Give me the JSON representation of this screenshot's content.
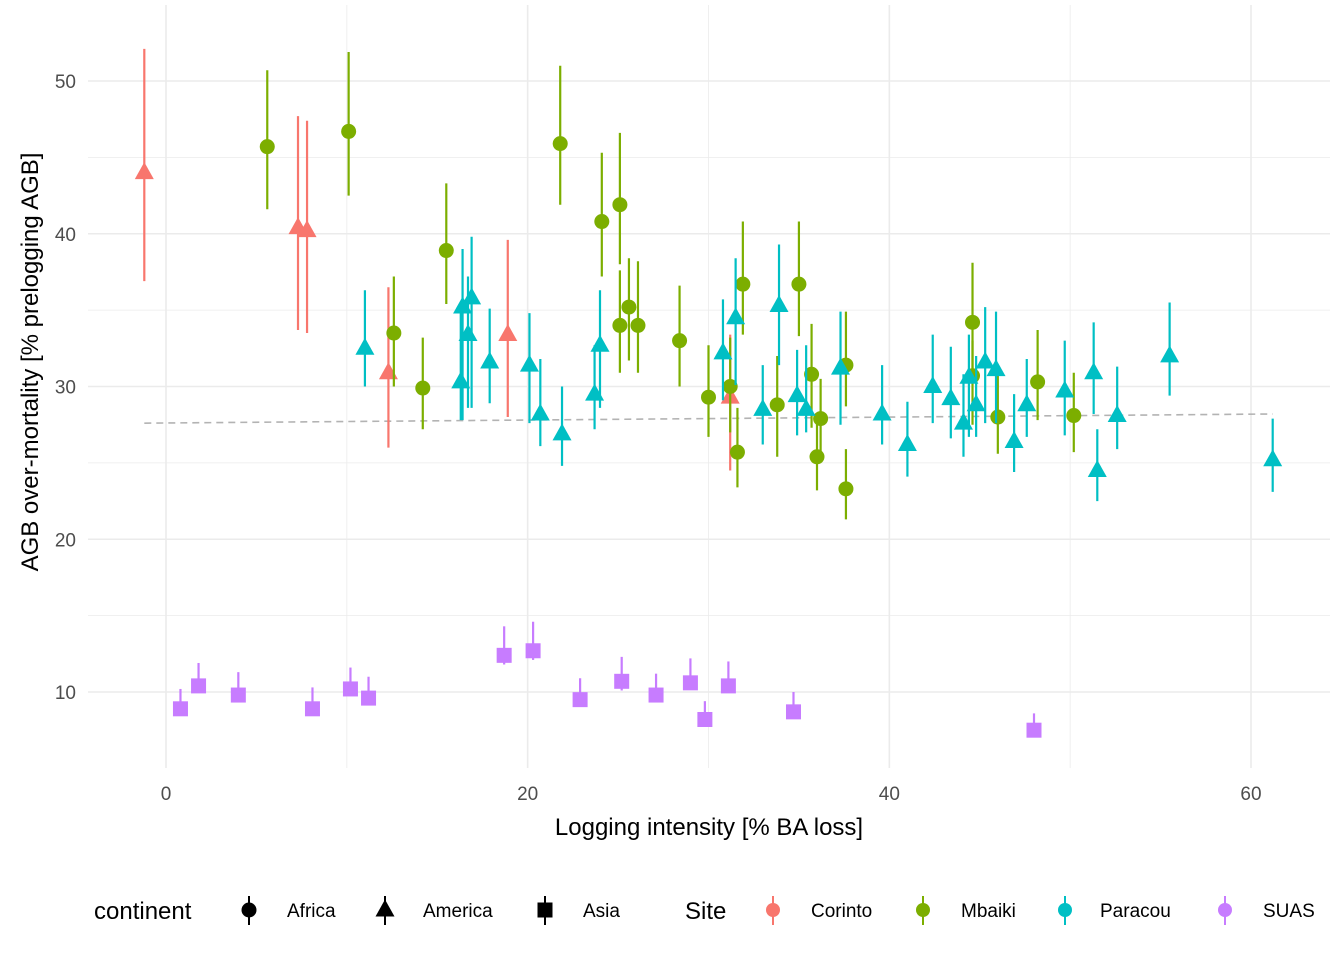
{
  "chart_data": {
    "type": "scatter",
    "title": "",
    "xlabel": "Logging intensity [% BA loss]",
    "ylabel": "AGB over-mortality [% prelogging AGB]",
    "xlim": [
      -4.3,
      64.2
    ],
    "ylim": [
      5,
      54.5
    ],
    "x_ticks": [
      0,
      20,
      40,
      60
    ],
    "y_ticks": [
      10,
      20,
      30,
      40,
      50
    ],
    "grid": true,
    "legend_position": "bottom",
    "legends": [
      {
        "title": "continent",
        "aesthetic": "shape",
        "entries": [
          {
            "label": "Africa",
            "shape": "circle"
          },
          {
            "label": "America",
            "shape": "triangle"
          },
          {
            "label": "Asia",
            "shape": "square"
          }
        ]
      },
      {
        "title": "Site",
        "aesthetic": "color",
        "entries": [
          {
            "label": "Corinto",
            "color": "#F8766D"
          },
          {
            "label": "Mbaiki",
            "color": "#7CAE00"
          },
          {
            "label": "Paracou",
            "color": "#00BFC4"
          },
          {
            "label": "SUAS",
            "color": "#C77CFF"
          }
        ]
      }
    ],
    "trend_line": {
      "style": "dashed",
      "color": "#b3b3b3",
      "x": [
        -1.2,
        61.2
      ],
      "y": [
        27.6,
        28.2
      ]
    },
    "series": [
      {
        "name": "Corinto",
        "continent": "America",
        "shape": "triangle",
        "color": "#F8766D",
        "points": [
          {
            "x": -1.2,
            "y": 44.0,
            "lo": 36.9,
            "hi": 52.1
          },
          {
            "x": 7.3,
            "y": 40.4,
            "lo": 33.7,
            "hi": 47.7
          },
          {
            "x": 7.8,
            "y": 40.2,
            "lo": 33.5,
            "hi": 47.4
          },
          {
            "x": 12.3,
            "y": 30.9,
            "lo": 26.0,
            "hi": 36.5
          },
          {
            "x": 18.9,
            "y": 33.4,
            "lo": 28.0,
            "hi": 39.6
          },
          {
            "x": 31.2,
            "y": 29.3,
            "lo": 24.5,
            "hi": 33.4
          }
        ]
      },
      {
        "name": "Mbaiki",
        "continent": "Africa",
        "shape": "circle",
        "color": "#7CAE00",
        "points": [
          {
            "x": 5.6,
            "y": 45.7,
            "lo": 41.6,
            "hi": 50.7
          },
          {
            "x": 10.1,
            "y": 46.7,
            "lo": 42.5,
            "hi": 51.9
          },
          {
            "x": 12.6,
            "y": 33.5,
            "lo": 30.0,
            "hi": 37.2
          },
          {
            "x": 14.2,
            "y": 29.9,
            "lo": 27.2,
            "hi": 33.2
          },
          {
            "x": 15.5,
            "y": 38.9,
            "lo": 35.4,
            "hi": 43.3
          },
          {
            "x": 21.8,
            "y": 45.9,
            "lo": 41.9,
            "hi": 51.0
          },
          {
            "x": 24.1,
            "y": 40.8,
            "lo": 37.2,
            "hi": 45.3
          },
          {
            "x": 25.1,
            "y": 41.9,
            "lo": 38.0,
            "hi": 46.6
          },
          {
            "x": 25.1,
            "y": 34.0,
            "lo": 30.9,
            "hi": 37.6
          },
          {
            "x": 25.6,
            "y": 35.2,
            "lo": 31.7,
            "hi": 38.4
          },
          {
            "x": 26.1,
            "y": 34.0,
            "lo": 30.9,
            "hi": 38.2
          },
          {
            "x": 28.4,
            "y": 33.0,
            "lo": 30.0,
            "hi": 36.6
          },
          {
            "x": 30.0,
            "y": 29.3,
            "lo": 26.7,
            "hi": 32.7
          },
          {
            "x": 31.2,
            "y": 30.0,
            "lo": 27.0,
            "hi": 33.2
          },
          {
            "x": 31.6,
            "y": 25.7,
            "lo": 23.4,
            "hi": 28.6
          },
          {
            "x": 31.9,
            "y": 36.7,
            "lo": 33.4,
            "hi": 40.8
          },
          {
            "x": 33.8,
            "y": 28.8,
            "lo": 25.4,
            "hi": 32.0
          },
          {
            "x": 35.0,
            "y": 36.7,
            "lo": 33.3,
            "hi": 40.8
          },
          {
            "x": 35.7,
            "y": 30.8,
            "lo": 27.3,
            "hi": 34.1
          },
          {
            "x": 36.2,
            "y": 27.9,
            "lo": 25.6,
            "hi": 30.5
          },
          {
            "x": 36.0,
            "y": 25.4,
            "lo": 23.2,
            "hi": 28.0
          },
          {
            "x": 37.6,
            "y": 31.4,
            "lo": 28.7,
            "hi": 34.9
          },
          {
            "x": 37.6,
            "y": 23.3,
            "lo": 21.3,
            "hi": 25.9
          },
          {
            "x": 44.6,
            "y": 34.2,
            "lo": 30.9,
            "hi": 38.1
          },
          {
            "x": 44.6,
            "y": 30.7,
            "lo": 27.5,
            "hi": 33.0
          },
          {
            "x": 46.0,
            "y": 28.0,
            "lo": 25.6,
            "hi": 31.0
          },
          {
            "x": 48.2,
            "y": 30.3,
            "lo": 27.8,
            "hi": 33.7
          },
          {
            "x": 50.2,
            "y": 28.1,
            "lo": 25.7,
            "hi": 30.9
          }
        ]
      },
      {
        "name": "Paracou",
        "continent": "America",
        "shape": "triangle",
        "color": "#00BFC4",
        "points": [
          {
            "x": 11.0,
            "y": 32.5,
            "lo": 30.0,
            "hi": 36.3
          },
          {
            "x": 16.3,
            "y": 30.3,
            "lo": 27.8,
            "hi": 35.5
          },
          {
            "x": 16.4,
            "y": 35.2,
            "lo": 27.8,
            "hi": 39.0
          },
          {
            "x": 16.7,
            "y": 33.4,
            "lo": 28.6,
            "hi": 37.2
          },
          {
            "x": 16.9,
            "y": 35.8,
            "lo": 28.6,
            "hi": 39.8
          },
          {
            "x": 17.9,
            "y": 31.6,
            "lo": 28.9,
            "hi": 35.1
          },
          {
            "x": 20.1,
            "y": 31.4,
            "lo": 27.6,
            "hi": 34.8
          },
          {
            "x": 20.7,
            "y": 28.2,
            "lo": 26.1,
            "hi": 31.8
          },
          {
            "x": 21.9,
            "y": 26.9,
            "lo": 24.8,
            "hi": 30.0
          },
          {
            "x": 23.7,
            "y": 29.5,
            "lo": 27.2,
            "hi": 32.7
          },
          {
            "x": 24.0,
            "y": 32.7,
            "lo": 28.6,
            "hi": 36.3
          },
          {
            "x": 30.8,
            "y": 32.2,
            "lo": 29.1,
            "hi": 35.7
          },
          {
            "x": 31.5,
            "y": 34.5,
            "lo": 30.1,
            "hi": 38.4
          },
          {
            "x": 33.0,
            "y": 28.5,
            "lo": 26.2,
            "hi": 31.4
          },
          {
            "x": 33.9,
            "y": 35.3,
            "lo": 31.4,
            "hi": 39.3
          },
          {
            "x": 34.9,
            "y": 29.4,
            "lo": 26.8,
            "hi": 32.4
          },
          {
            "x": 35.4,
            "y": 28.5,
            "lo": 27.0,
            "hi": 32.7
          },
          {
            "x": 37.3,
            "y": 31.2,
            "lo": 27.5,
            "hi": 34.9
          },
          {
            "x": 39.6,
            "y": 28.2,
            "lo": 26.2,
            "hi": 31.4
          },
          {
            "x": 41.0,
            "y": 26.2,
            "lo": 24.1,
            "hi": 29.0
          },
          {
            "x": 42.4,
            "y": 30.0,
            "lo": 27.6,
            "hi": 33.4
          },
          {
            "x": 43.4,
            "y": 29.2,
            "lo": 26.6,
            "hi": 32.6
          },
          {
            "x": 44.1,
            "y": 27.6,
            "lo": 25.4,
            "hi": 30.8
          },
          {
            "x": 44.4,
            "y": 30.6,
            "lo": 26.7,
            "hi": 33.4
          },
          {
            "x": 44.8,
            "y": 28.8,
            "lo": 26.7,
            "hi": 32.0
          },
          {
            "x": 45.3,
            "y": 31.6,
            "lo": 27.6,
            "hi": 35.2
          },
          {
            "x": 45.9,
            "y": 31.1,
            "lo": 27.6,
            "hi": 34.9
          },
          {
            "x": 46.9,
            "y": 26.4,
            "lo": 24.4,
            "hi": 29.5
          },
          {
            "x": 47.6,
            "y": 28.8,
            "lo": 26.7,
            "hi": 31.8
          },
          {
            "x": 49.7,
            "y": 29.7,
            "lo": 26.8,
            "hi": 33.0
          },
          {
            "x": 51.3,
            "y": 30.9,
            "lo": 28.2,
            "hi": 34.2
          },
          {
            "x": 51.5,
            "y": 24.5,
            "lo": 22.5,
            "hi": 27.2
          },
          {
            "x": 52.6,
            "y": 28.1,
            "lo": 25.9,
            "hi": 31.3
          },
          {
            "x": 55.5,
            "y": 32.0,
            "lo": 29.4,
            "hi": 35.5
          },
          {
            "x": 61.2,
            "y": 25.2,
            "lo": 23.1,
            "hi": 27.9
          }
        ]
      },
      {
        "name": "SUAS",
        "continent": "Asia",
        "shape": "square",
        "color": "#C77CFF",
        "points": [
          {
            "x": 0.8,
            "y": 8.9,
            "lo": 8.9,
            "hi": 10.2
          },
          {
            "x": 1.8,
            "y": 10.4,
            "lo": 10.4,
            "hi": 11.9
          },
          {
            "x": 4.0,
            "y": 9.8,
            "lo": 9.8,
            "hi": 11.3
          },
          {
            "x": 8.1,
            "y": 8.9,
            "lo": 8.9,
            "hi": 10.3
          },
          {
            "x": 10.2,
            "y": 10.2,
            "lo": 10.2,
            "hi": 11.6
          },
          {
            "x": 11.2,
            "y": 9.6,
            "lo": 9.6,
            "hi": 11.0
          },
          {
            "x": 18.7,
            "y": 12.4,
            "lo": 11.8,
            "hi": 14.3
          },
          {
            "x": 20.3,
            "y": 12.7,
            "lo": 12.1,
            "hi": 14.6
          },
          {
            "x": 22.9,
            "y": 9.5,
            "lo": 9.5,
            "hi": 10.9
          },
          {
            "x": 25.2,
            "y": 10.7,
            "lo": 10.1,
            "hi": 12.3
          },
          {
            "x": 27.1,
            "y": 9.8,
            "lo": 9.8,
            "hi": 11.2
          },
          {
            "x": 29.0,
            "y": 10.6,
            "lo": 10.6,
            "hi": 12.2
          },
          {
            "x": 29.8,
            "y": 8.2,
            "lo": 8.2,
            "hi": 9.4
          },
          {
            "x": 31.1,
            "y": 10.4,
            "lo": 10.4,
            "hi": 12.0
          },
          {
            "x": 34.7,
            "y": 8.7,
            "lo": 8.7,
            "hi": 10.0
          },
          {
            "x": 48.0,
            "y": 7.5,
            "lo": 7.5,
            "hi": 8.6
          }
        ]
      }
    ]
  }
}
